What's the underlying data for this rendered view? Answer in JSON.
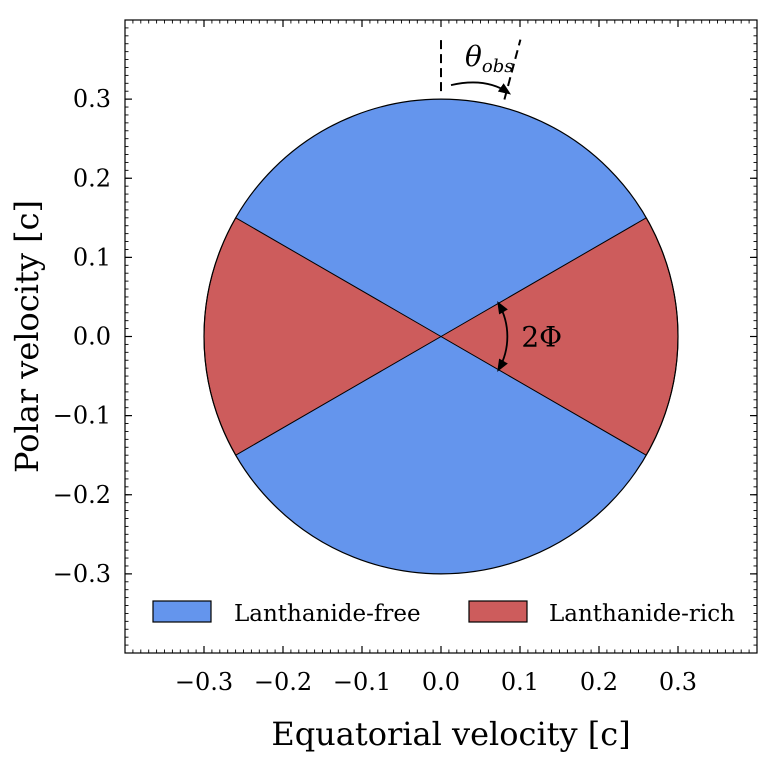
{
  "chart_data": {
    "type": "area",
    "title": "",
    "xlabel": "Equatorial velocity [c]",
    "ylabel": "Polar velocity [c]",
    "xlim": [
      -0.4,
      0.4
    ],
    "ylim": [
      -0.4,
      0.4
    ],
    "xticks": [
      -0.3,
      -0.2,
      -0.1,
      0.0,
      0.1,
      0.2,
      0.3
    ],
    "yticks": [
      -0.3,
      -0.2,
      -0.1,
      0.0,
      0.1,
      0.2,
      0.3
    ],
    "xtick_labels": [
      "−0.3",
      "−0.2",
      "−0.1",
      "0.0",
      "0.1",
      "0.2",
      "0.3"
    ],
    "ytick_labels": [
      "−0.3",
      "−0.2",
      "−0.1",
      "0.0",
      "0.1",
      "0.2",
      "0.3"
    ],
    "grid": false,
    "minor_ticks": true,
    "legend_position": "bottom",
    "circle": {
      "center": [
        0.0,
        0.0
      ],
      "radius": 0.3
    },
    "regions": [
      {
        "name": "Lanthanide-free",
        "color": "#6495ED",
        "description": "polar cones",
        "polar_angle_from_deg": 0,
        "polar_angle_to_deg": 60
      },
      {
        "name": "Lanthanide-rich",
        "color": "#CD5C5C",
        "description": "equatorial wedge",
        "half_opening_angle_deg": 30
      }
    ],
    "annotations": {
      "theta_obs": {
        "symbol": "θ",
        "subscript": "obs",
        "observer_angle_deg": 15
      },
      "phi": {
        "label": "2Φ",
        "half_angle_deg": 30
      }
    }
  }
}
